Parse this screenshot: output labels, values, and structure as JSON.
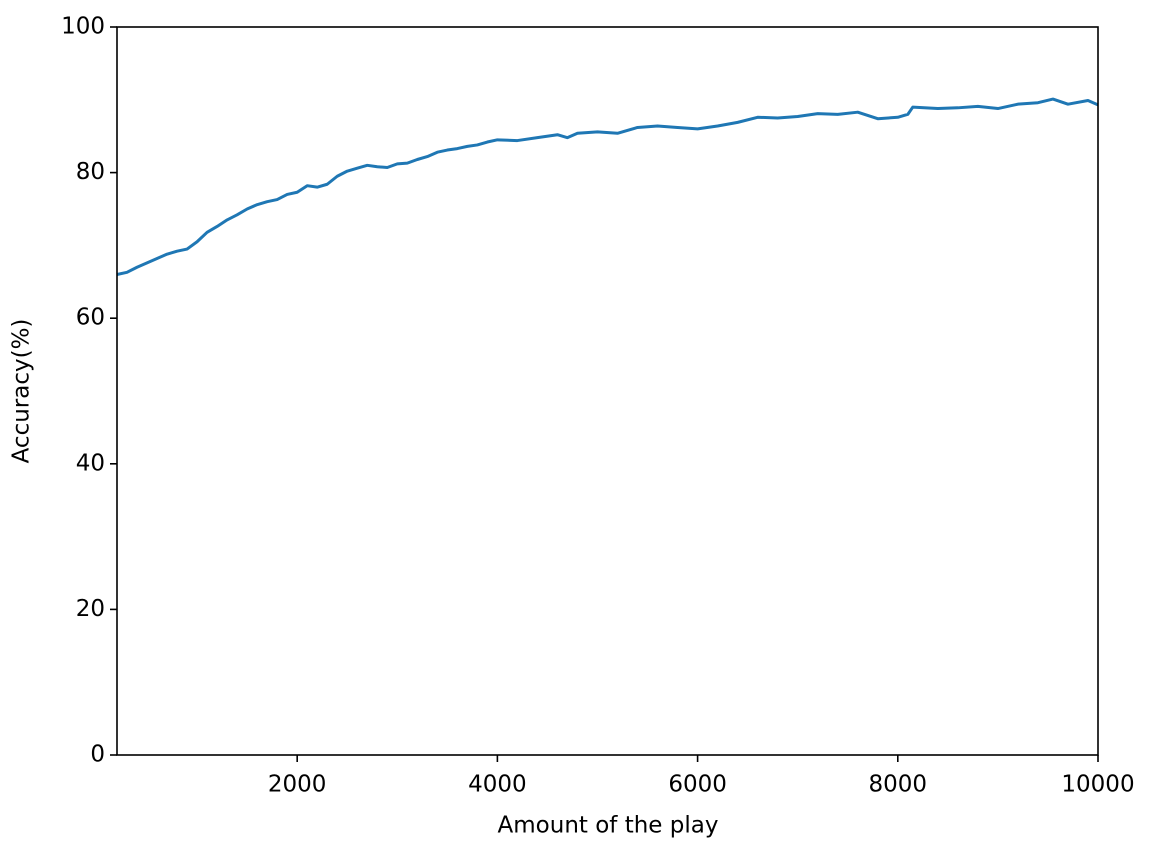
{
  "chart_data": {
    "type": "line",
    "x_label": "Amount of the play",
    "y_label": "Accuracy(%)",
    "x": [
      200,
      300,
      400,
      500,
      600,
      700,
      800,
      900,
      1000,
      1100,
      1200,
      1300,
      1400,
      1500,
      1600,
      1700,
      1800,
      1900,
      2000,
      2100,
      2200,
      2300,
      2400,
      2500,
      2600,
      2700,
      2800,
      2900,
      3000,
      3100,
      3200,
      3300,
      3400,
      3500,
      3600,
      3700,
      3800,
      3900,
      4000,
      4200,
      4400,
      4600,
      4700,
      4800,
      5000,
      5200,
      5400,
      5600,
      5800,
      6000,
      6200,
      6400,
      6600,
      6800,
      7000,
      7200,
      7400,
      7600,
      7800,
      8000,
      8100,
      8150,
      8400,
      8600,
      8800,
      9000,
      9200,
      9400,
      9550,
      9700,
      9900,
      10000
    ],
    "series": [
      {
        "color": "#1f77b4",
        "values": [
          66,
          66.3,
          67,
          67.6,
          68.2,
          68.8,
          69.2,
          69.5,
          70.5,
          71.8,
          72.6,
          73.5,
          74.2,
          75,
          75.6,
          76,
          76.3,
          77,
          77.3,
          78.2,
          78,
          78.4,
          79.5,
          80.2,
          80.6,
          81,
          80.8,
          80.7,
          81.2,
          81.3,
          81.8,
          82.2,
          82.8,
          83.1,
          83.3,
          83.6,
          83.8,
          84.2,
          84.5,
          84.4,
          84.8,
          85.2,
          84.8,
          85.4,
          85.6,
          85.4,
          86.2,
          86.4,
          86.2,
          86.0,
          86.4,
          86.9,
          87.6,
          87.5,
          87.7,
          88.1,
          88.0,
          88.3,
          87.4,
          87.6,
          88.0,
          89.0,
          88.8,
          88.9,
          89.1,
          88.8,
          89.4,
          89.6,
          90.1,
          89.4,
          89.9,
          89.3
        ]
      }
    ],
    "xlim": [
      200,
      10000
    ],
    "xticks": [
      2000,
      4000,
      6000,
      8000,
      10000
    ],
    "ylim": [
      0,
      100
    ],
    "yticks": [
      0,
      20,
      40,
      60,
      80,
      100
    ]
  }
}
